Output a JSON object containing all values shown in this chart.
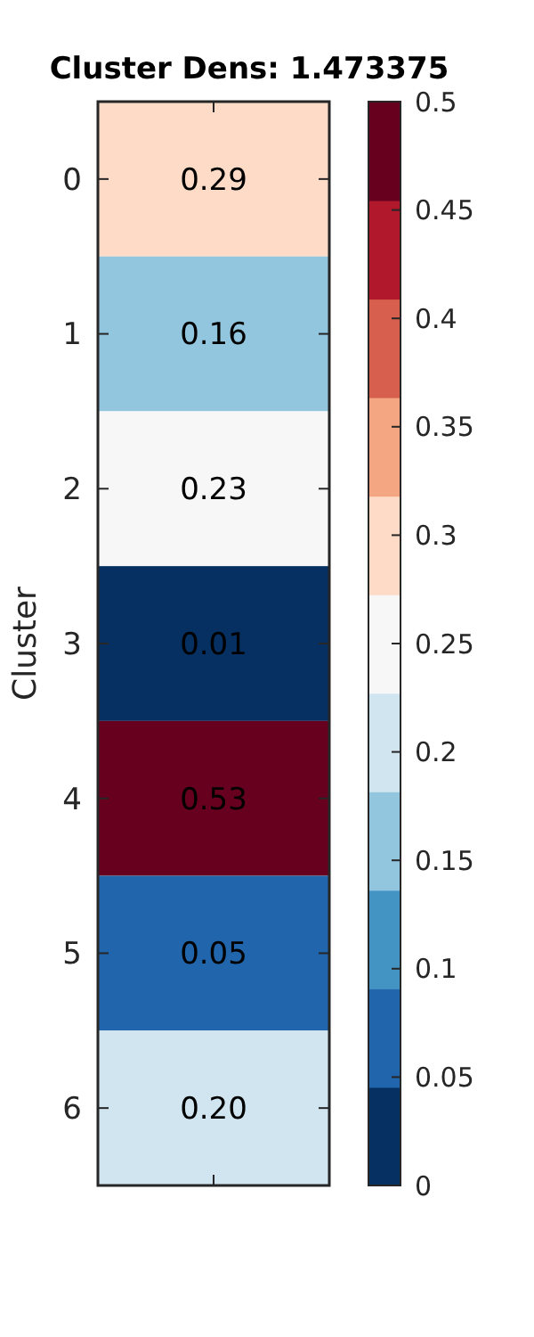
{
  "chart_data": {
    "type": "heatmap",
    "title": "Cluster Dens: 1.473375",
    "ylabel": "Cluster",
    "categories": [
      null
    ],
    "y_categories": [
      "0",
      "1",
      "2",
      "3",
      "4",
      "5",
      "6"
    ],
    "cells": [
      [
        0.29
      ],
      [
        0.16
      ],
      [
        0.23
      ],
      [
        0.01
      ],
      [
        0.53
      ],
      [
        0.05
      ],
      [
        0.2
      ]
    ],
    "cell_labels": [
      [
        "0.29"
      ],
      [
        "0.16"
      ],
      [
        "0.23"
      ],
      [
        "0.01"
      ],
      [
        "0.53"
      ],
      [
        "0.05"
      ],
      [
        "0.20"
      ]
    ],
    "clim": [
      0,
      0.5
    ],
    "cticks": [
      0,
      0.05,
      0.1,
      0.15,
      0.2,
      0.25,
      0.3,
      0.35,
      0.4,
      0.45,
      0.5
    ]
  }
}
